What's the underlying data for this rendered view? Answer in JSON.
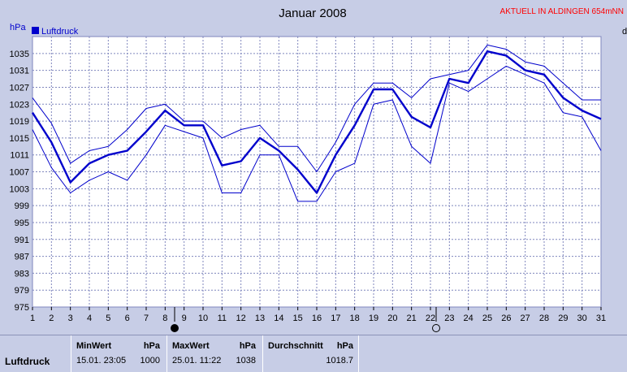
{
  "header": {
    "title": "Januar 2008",
    "station_status": "AKTUELL IN ALDINGEN 654mNN",
    "unit_left": "hPa",
    "unit_right": "d"
  },
  "colors": {
    "panel_bg": "#c7cde6",
    "plot_bg": "#ffffff",
    "grid": "#7f86bd",
    "series": "#0000cc",
    "status_text": "#ff0000"
  },
  "chart_data": {
    "type": "line",
    "title": "Januar 2008",
    "ylabel": "hPa",
    "xlabel": "",
    "x": [
      1,
      2,
      3,
      4,
      5,
      6,
      7,
      8,
      9,
      10,
      11,
      12,
      13,
      14,
      15,
      16,
      17,
      18,
      19,
      20,
      21,
      22,
      23,
      24,
      25,
      26,
      27,
      28,
      29,
      30,
      31
    ],
    "ylim": [
      975,
      1039
    ],
    "yticks": [
      975,
      979,
      983,
      987,
      991,
      995,
      999,
      1003,
      1007,
      1011,
      1015,
      1019,
      1023,
      1027,
      1031,
      1035
    ],
    "grid": true,
    "legend": "top-left",
    "legend_label": "Luftdruck",
    "series": [
      {
        "name": "Luftdruck",
        "role": "mean",
        "values": [
          1021,
          1014,
          1004.5,
          1009,
          1011,
          1012,
          1016.5,
          1021.5,
          1018,
          1018,
          1008.5,
          1009.5,
          1015,
          1012,
          1007.5,
          1002,
          1011,
          1018,
          1026.5,
          1026.5,
          1020,
          1017.5,
          1029,
          1028,
          1035.5,
          1034.5,
          1031,
          1030,
          1024.5,
          1021.5,
          1019.5
        ]
      },
      {
        "role": "max",
        "values": [
          1024.5,
          1018.5,
          1009,
          1012,
          1013,
          1017,
          1022,
          1023,
          1019,
          1019,
          1015,
          1017,
          1018,
          1013,
          1013,
          1007,
          1014,
          1023,
          1028,
          1028,
          1024.5,
          1029,
          1030,
          1031,
          1037,
          1036,
          1033,
          1032,
          1028,
          1024,
          1024
        ]
      },
      {
        "role": "min",
        "values": [
          1017,
          1008,
          1002,
          1005,
          1007,
          1005,
          1011,
          1018,
          1016.5,
          1015,
          1002,
          1002,
          1011,
          1011,
          1000,
          1000,
          1007,
          1009,
          1023,
          1024,
          1013,
          1009,
          1028,
          1026,
          1029,
          1032,
          1030,
          1028,
          1021,
          1020,
          1012
        ]
      }
    ],
    "markers": [
      {
        "symbol": "new-moon",
        "x": 8.5
      },
      {
        "symbol": "full-moon",
        "x": 22.3
      }
    ]
  },
  "stats": {
    "row_label": "Luftdruck",
    "min": {
      "label": "MinWert",
      "unit": "hPa",
      "date": "15.01.  23:05",
      "value": "1000"
    },
    "max": {
      "label": "MaxWert",
      "unit": "hPa",
      "date": "25.01.  11:22",
      "value": "1038"
    },
    "avg": {
      "label": "Durchschnitt",
      "unit": "hPa",
      "value": "1018.7"
    }
  }
}
